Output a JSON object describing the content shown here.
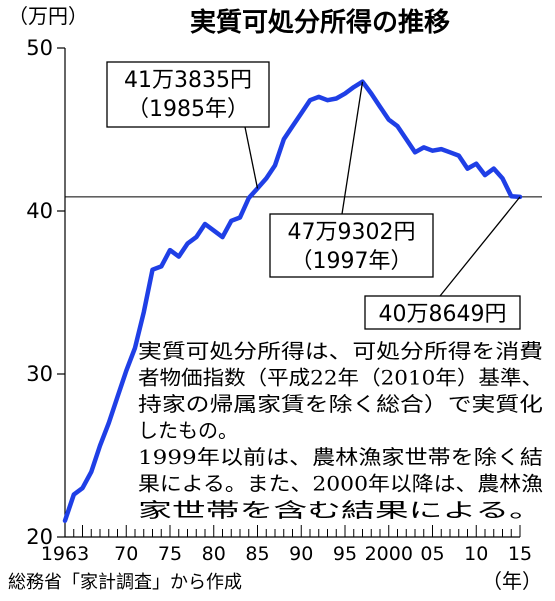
{
  "chart_data": {
    "type": "line",
    "title": "実質可処分所得の推移",
    "ylabel": "（万円）",
    "xlabel": "（年）",
    "ylim": [
      20,
      50
    ],
    "xlim": [
      1963,
      2015
    ],
    "yticks": [
      20,
      30,
      40,
      50
    ],
    "xtick_labels": [
      {
        "x": 1963,
        "label": "1963"
      },
      {
        "x": 1970,
        "label": "70"
      },
      {
        "x": 1975,
        "label": "75"
      },
      {
        "x": 1980,
        "label": "80"
      },
      {
        "x": 1985,
        "label": "85"
      },
      {
        "x": 1990,
        "label": "90"
      },
      {
        "x": 1995,
        "label": "95"
      },
      {
        "x": 2000,
        "label": "2000"
      },
      {
        "x": 2005,
        "label": "05"
      },
      {
        "x": 2010,
        "label": "10"
      },
      {
        "x": 2015,
        "label": "15"
      }
    ],
    "reference_line": 40.8649,
    "series": [
      {
        "color": "#1f3fe6",
        "x": [
          1963,
          1964,
          1965,
          1966,
          1967,
          1968,
          1969,
          1970,
          1971,
          1972,
          1973,
          1974,
          1975,
          1976,
          1977,
          1978,
          1979,
          1980,
          1981,
          1982,
          1983,
          1984,
          1985,
          1986,
          1987,
          1988,
          1989,
          1990,
          1991,
          1992,
          1993,
          1994,
          1995,
          1996,
          1997,
          1998,
          1999,
          2000,
          2001,
          2002,
          2003,
          2004,
          2005,
          2006,
          2007,
          2008,
          2009,
          2010,
          2011,
          2012,
          2013,
          2014,
          2015
        ],
        "y": [
          21.0,
          22.6,
          23.0,
          24.0,
          25.6,
          27.0,
          28.6,
          30.2,
          31.6,
          33.8,
          36.4,
          36.6,
          37.6,
          37.2,
          38.0,
          38.4,
          39.2,
          38.8,
          38.4,
          39.4,
          39.6,
          40.8,
          41.3835,
          42.0,
          42.8,
          44.4,
          45.2,
          46.0,
          46.8,
          47.0,
          46.8,
          46.9,
          47.2,
          47.6,
          47.9302,
          47.2,
          46.4,
          45.6,
          45.2,
          44.4,
          43.6,
          43.9,
          43.7,
          43.8,
          43.6,
          43.4,
          42.6,
          42.9,
          42.2,
          42.6,
          42.0,
          40.9,
          40.8649
        ]
      }
    ],
    "annotations": [
      {
        "lines": [
          "41万3835円",
          "（1985年）"
        ],
        "x": 1985,
        "y": 41.3835
      },
      {
        "lines": [
          "47万9302円",
          "（1997年）"
        ],
        "x": 1997,
        "y": 47.9302
      },
      {
        "lines": [
          "40万8649円"
        ],
        "x": 2015,
        "y": 40.8649
      }
    ],
    "note_lines": [
      "実質可処分所得は、可処分所得を消費",
      "者物価指数（平成22年（2010年）基準、",
      "持家の帰属家賃を除く総合）で実質化",
      "したもの。",
      "1999年以前は、農林漁家世帯を除く結",
      "果による。また、2000年以降は、農林漁",
      "家世帯を含む結果による。"
    ],
    "source": "総務省「家計調査」から作成"
  }
}
